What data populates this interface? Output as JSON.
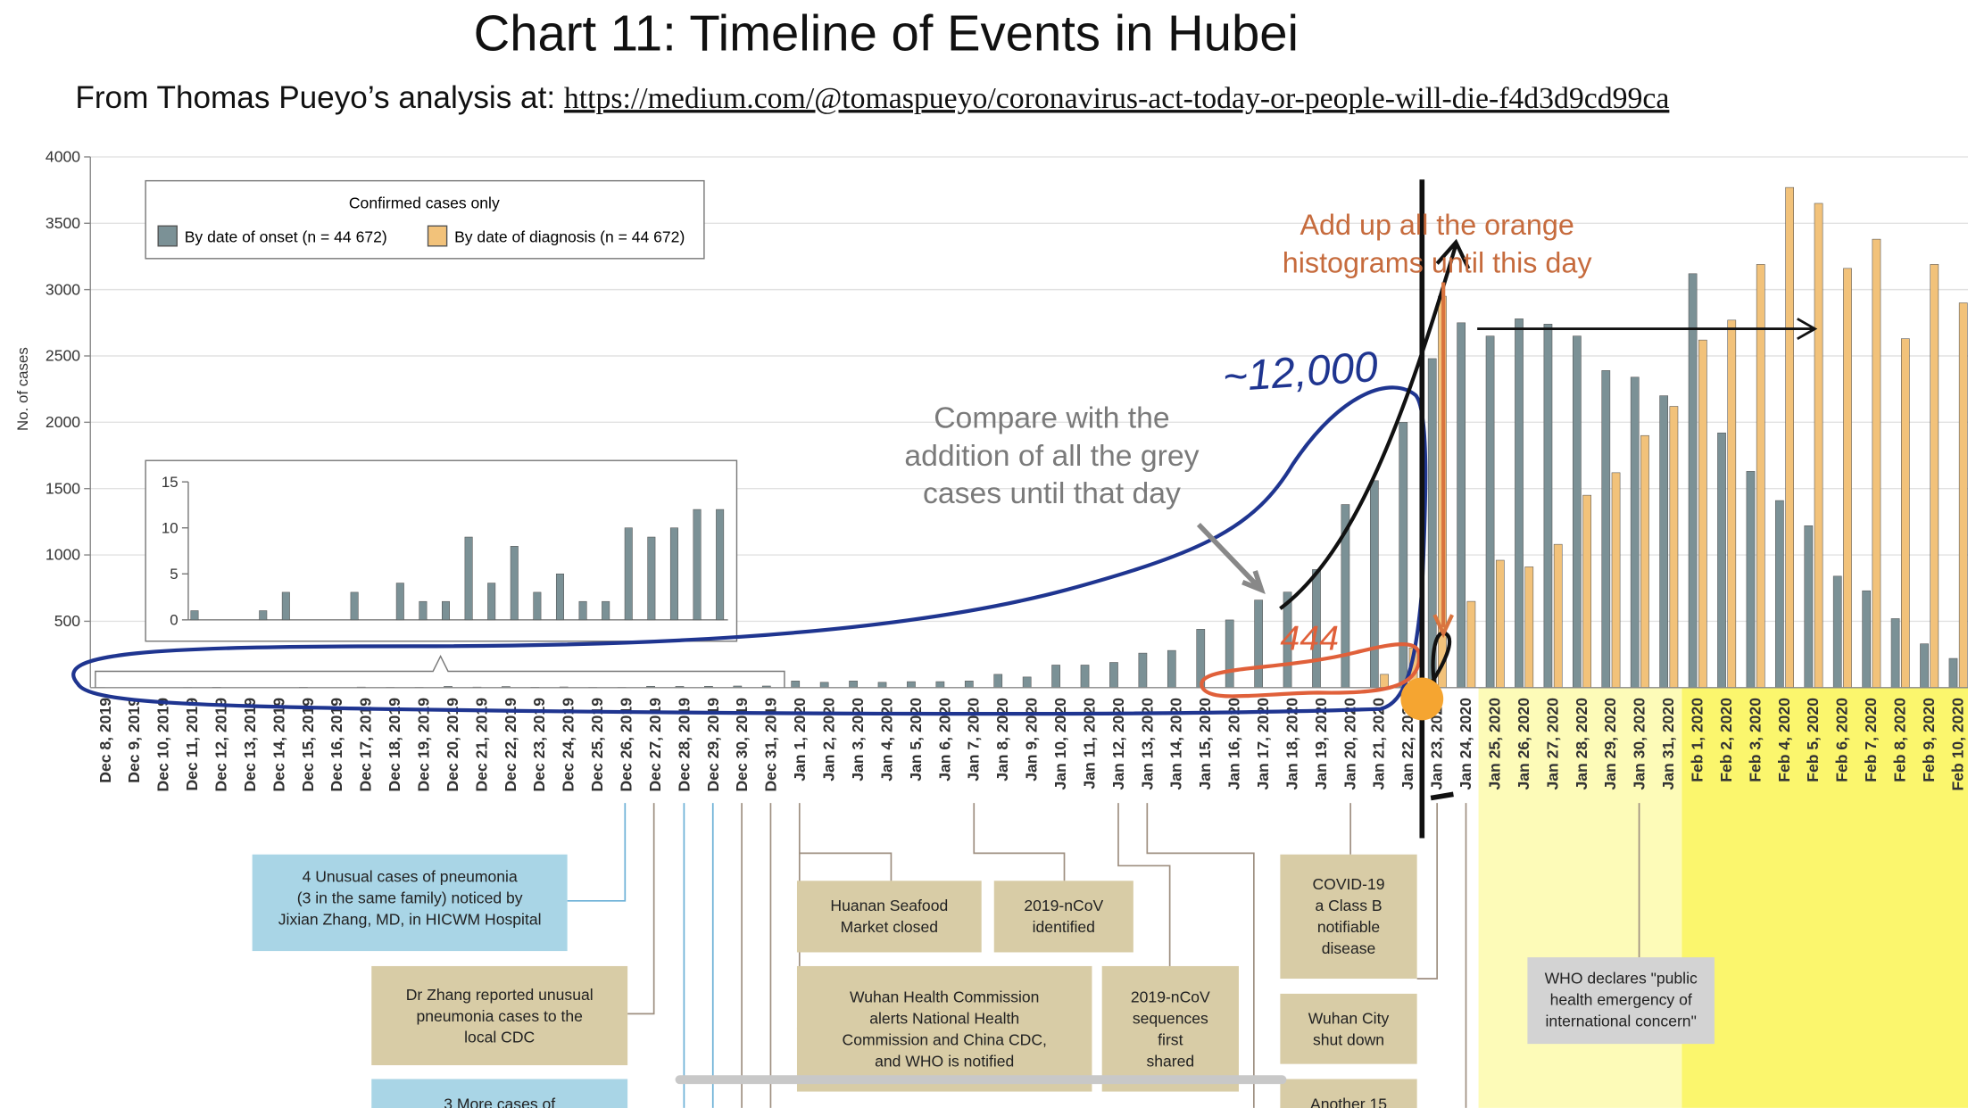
{
  "title": "Chart 11: Timeline of Events in Hubei",
  "subtitle": "From Thomas Pueyo’s analysis at: ",
  "link": "https://medium.com/@tomaspueyo/coronavirus-act-today-or-people-will-die-f4d3d9cd99ca",
  "chart_data": [
    {
      "type": "bar",
      "ylabel": "No. of cases",
      "legend_title": "Confirmed cases only",
      "categories": [
        "Dec 8, 2019",
        "Dec 9, 2019",
        "Dec 10, 2019",
        "Dec 11, 2019",
        "Dec 12, 2019",
        "Dec 13, 2019",
        "Dec 14, 2019",
        "Dec 15, 2019",
        "Dec 16, 2019",
        "Dec 17, 2019",
        "Dec 18, 2019",
        "Dec 19, 2019",
        "Dec 20, 2019",
        "Dec 21, 2019",
        "Dec 22, 2019",
        "Dec 23, 2019",
        "Dec 24, 2019",
        "Dec 25, 2019",
        "Dec 26, 2019",
        "Dec 27, 2019",
        "Dec 28, 2019",
        "Dec 29, 2019",
        "Dec 30, 2019",
        "Dec 31, 2019",
        "Jan 1, 2020",
        "Jan 2, 2020",
        "Jan 3, 2020",
        "Jan 4, 2020",
        "Jan 5, 2020",
        "Jan 6, 2020",
        "Jan 7, 2020",
        "Jan 8, 2020",
        "Jan 9, 2020",
        "Jan 10, 2020",
        "Jan 11, 2020",
        "Jan 12, 2020",
        "Jan 13, 2020",
        "Jan 14, 2020",
        "Jan 15, 2020",
        "Jan 16, 2020",
        "Jan 17, 2020",
        "Jan 18, 2020",
        "Jan 19, 2020",
        "Jan 20, 2020",
        "Jan 21, 2020",
        "Jan 22, 2020",
        "Jan 23, 2020",
        "Jan 24, 2020",
        "Jan 25, 2020",
        "Jan 26, 2020",
        "Jan 27, 2020",
        "Jan 28, 2020",
        "Jan 29, 2020",
        "Jan 30, 2020",
        "Jan 31, 2020",
        "Feb 1, 2020",
        "Feb 2, 2020",
        "Feb 3, 2020",
        "Feb 4, 2020",
        "Feb 5, 2020",
        "Feb 6, 2020",
        "Feb 7, 2020",
        "Feb 8, 2020",
        "Feb 9, 2020",
        "Feb 10, 2020"
      ],
      "series": [
        {
          "name": "By date of onset (n = 44 672)",
          "color": "#7b9196",
          "values": [
            1,
            0,
            0,
            1,
            3,
            0,
            0,
            3,
            0,
            4,
            2,
            2,
            9,
            4,
            8,
            3,
            5,
            2,
            2,
            10,
            9,
            10,
            12,
            12,
            50,
            40,
            50,
            40,
            45,
            45,
            50,
            100,
            80,
            170,
            170,
            190,
            260,
            280,
            440,
            510,
            660,
            720,
            890,
            1380,
            1560,
            2000,
            2480,
            2750,
            2650,
            2780,
            2740,
            2650,
            2390,
            2340,
            2200,
            3120,
            1920,
            1630,
            1410,
            1220,
            840,
            730,
            520,
            330,
            220
          ]
        },
        {
          "name": "By date of diagnosis (n = 44 672)",
          "color": "#f2c27a",
          "values": [
            0,
            0,
            0,
            0,
            0,
            0,
            0,
            0,
            0,
            0,
            0,
            0,
            0,
            0,
            0,
            0,
            0,
            0,
            0,
            0,
            0,
            0,
            0,
            0,
            0,
            0,
            0,
            0,
            0,
            0,
            0,
            0,
            0,
            0,
            0,
            0,
            0,
            0,
            0,
            0,
            0,
            0,
            0,
            0,
            100,
            300,
            2950,
            650,
            960,
            910,
            1080,
            1450,
            1620,
            1900,
            2120,
            2620,
            2770,
            3190,
            3770,
            3650,
            3160,
            3380,
            2630,
            3190,
            2900
          ]
        }
      ],
      "ylim": [
        0,
        4000
      ],
      "yticks": [
        500,
        1000,
        1500,
        2000,
        2500,
        3000,
        3500,
        4000
      ],
      "grid": true,
      "annotations": {
        "orange_note": [
          "Add up all the orange",
          "histograms until this day"
        ],
        "grey_note": [
          "Compare with the",
          "addition of all the grey",
          "cases until that day"
        ],
        "blue_note": "~12,000",
        "red_note": "444"
      }
    },
    {
      "type": "bar",
      "color": "#7b9196",
      "values": [
        1,
        0,
        0,
        1,
        3,
        0,
        0,
        3,
        0,
        4,
        2,
        2,
        9,
        4,
        8,
        3,
        5,
        2,
        2,
        10,
        9,
        10,
        12,
        12
      ],
      "ylim": [
        0,
        15
      ],
      "yticks": [
        0,
        5,
        10,
        15
      ]
    }
  ],
  "timeline_events": [
    {
      "lines": [
        "4 Unusual cases of pneumonia",
        "(3 in the same family) noticed by",
        "Jixian Zhang, MD, in HICWM Hospital"
      ]
    },
    {
      "lines": [
        "Dr Zhang reported unusual",
        "pneumonia cases to the",
        "local CDC"
      ]
    },
    {
      "lines": [
        "3 More cases of"
      ]
    },
    {
      "lines": [
        "Huanan Seafood",
        "Market closed"
      ]
    },
    {
      "lines": [
        "2019-nCoV",
        "identified"
      ]
    },
    {
      "lines": [
        "Wuhan Health Commission",
        "alerts National Health",
        "Commission and China CDC,",
        "and WHO is notified"
      ]
    },
    {
      "lines": [
        "2019-nCoV",
        "sequences",
        "first",
        "shared"
      ]
    },
    {
      "lines": [
        "COVID-19",
        "a Class B",
        "notifiable",
        "disease"
      ]
    },
    {
      "lines": [
        "Wuhan City",
        "shut down"
      ]
    },
    {
      "lines": [
        "Another 15"
      ]
    },
    {
      "lines": [
        "WHO declares \"public",
        "health emergency of",
        "international concern\""
      ]
    }
  ]
}
